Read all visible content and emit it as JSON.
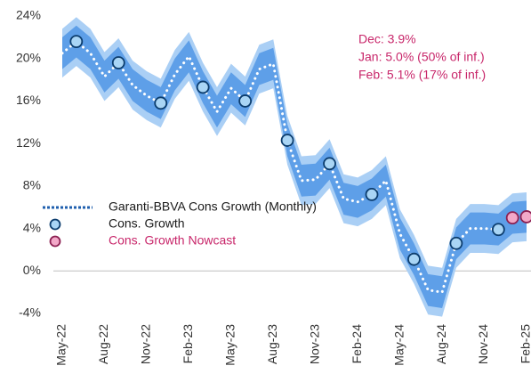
{
  "chart_data": {
    "type": "line",
    "categories": [
      "May-22",
      null,
      null,
      "Aug-22",
      null,
      null,
      "Nov-22",
      null,
      null,
      "Feb-23",
      null,
      null,
      "May-23",
      null,
      null,
      "Aug-23",
      null,
      null,
      "Nov-23",
      null,
      null,
      "Feb-24",
      null,
      null,
      "May-24",
      null,
      null,
      "Aug-24",
      null,
      null,
      "Nov-24",
      null,
      null,
      "Feb-25"
    ],
    "ylim": [
      -4,
      24
    ],
    "yticks": [
      {
        "value": -4,
        "label": "-4%"
      },
      {
        "value": 0,
        "label": "0%"
      },
      {
        "value": 4,
        "label": "4%"
      },
      {
        "value": 8,
        "label": "8%"
      },
      {
        "value": 12,
        "label": "12%"
      },
      {
        "value": 16,
        "label": "16%"
      },
      {
        "value": 20,
        "label": "20%"
      },
      {
        "value": 24,
        "label": "24%"
      }
    ],
    "bands": [
      {
        "color": "#aacff5",
        "lower": [
          18.2,
          19.3,
          18.2,
          16,
          17.3,
          15.2,
          14.2,
          13.5,
          16.2,
          17.9,
          15,
          12.7,
          14.9,
          13.7,
          16.7,
          17.2,
          10,
          6.2,
          6.3,
          7.8,
          4.5,
          4.2,
          4.9,
          6.2,
          1.2,
          -1.2,
          -4.1,
          -4.3,
          0.3,
          1.7,
          1.7,
          1.6,
          2.7,
          2.8
        ],
        "upper": [
          22.8,
          23.9,
          22.8,
          20.6,
          21.9,
          19.8,
          18.8,
          18.1,
          20.8,
          22.5,
          19.6,
          17.3,
          19.5,
          18.3,
          21.3,
          21.8,
          14.6,
          10.8,
          10.9,
          12.4,
          9.1,
          8.8,
          9.5,
          10.8,
          5.8,
          3.4,
          0.5,
          0.3,
          4.9,
          6.3,
          6.3,
          6.2,
          7.3,
          7.4
        ]
      },
      {
        "color": "#5e9fe8",
        "lower": [
          19,
          20.1,
          19,
          16.8,
          18.1,
          16,
          15,
          14.3,
          17,
          18.7,
          15.8,
          13.5,
          15.7,
          14.5,
          17.5,
          18,
          10.8,
          7,
          7.1,
          8.6,
          5.3,
          5,
          5.7,
          7,
          2,
          -0.4,
          -3.3,
          -3.5,
          1.1,
          2.5,
          2.5,
          2.4,
          3.5,
          3.6
        ],
        "upper": [
          22,
          23.1,
          22,
          19.8,
          21.1,
          19,
          18,
          17.3,
          20,
          21.7,
          18.8,
          16.5,
          18.7,
          17.5,
          20.5,
          21,
          13.8,
          10,
          10.1,
          11.6,
          8.3,
          8,
          8.7,
          10,
          5,
          2.6,
          -0.3,
          -0.5,
          4.1,
          5.5,
          5.5,
          5.4,
          6.5,
          6.6
        ]
      }
    ],
    "series": [
      {
        "name": "Garanti-BBVA Cons Growth (Monthly)",
        "kind": "dotted",
        "color": "#ffffff",
        "legend_color": "#1f5fae",
        "values": [
          20.5,
          21.6,
          20.5,
          18.3,
          19.6,
          17.5,
          16.5,
          15.8,
          18.5,
          20.2,
          17.3,
          15,
          17.2,
          16,
          19,
          19.5,
          12.3,
          8.5,
          8.6,
          10.1,
          6.8,
          6.5,
          7.2,
          8.5,
          3.5,
          1.1,
          -1.8,
          -2,
          2.6,
          4,
          4,
          3.9,
          null,
          null
        ]
      },
      {
        "name": "Cons. Growth",
        "kind": "marker",
        "color": "#a9d5f5",
        "edge": "#0c3d6e",
        "text_color": "#1a1a1a",
        "values": [
          null,
          21.6,
          null,
          null,
          19.6,
          null,
          null,
          15.8,
          null,
          null,
          17.3,
          null,
          null,
          16,
          null,
          null,
          12.3,
          null,
          null,
          10.1,
          null,
          null,
          7.2,
          null,
          null,
          1.1,
          null,
          null,
          2.6,
          null,
          null,
          3.9,
          null,
          null
        ]
      },
      {
        "name": "Cons. Growth Nowcast",
        "kind": "marker",
        "color": "#f2a8c8",
        "edge": "#8c2052",
        "text_color": "#c8266a",
        "values": [
          null,
          null,
          null,
          null,
          null,
          null,
          null,
          null,
          null,
          null,
          null,
          null,
          null,
          null,
          null,
          null,
          null,
          null,
          null,
          null,
          null,
          null,
          null,
          null,
          null,
          null,
          null,
          null,
          null,
          null,
          null,
          null,
          5.0,
          5.1
        ]
      }
    ],
    "annotations": [
      "Dec: 3.9%",
      "Jan: 5.0% (50% of inf.)",
      "Feb: 5.1% (17% of inf.)"
    ],
    "annotation_color": "#c8266a"
  }
}
